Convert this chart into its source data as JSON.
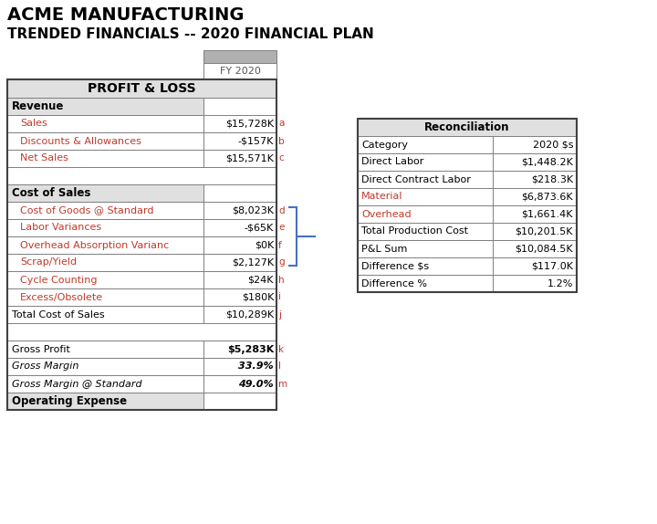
{
  "title1": "ACME MANUFACTURING",
  "title2": "TRENDED FINANCIALS -- 2020 FINANCIAL PLAN",
  "col_header": "FY 2020",
  "pl_section_title": "PROFIT & LOSS",
  "revenue_header": "Revenue",
  "revenue_rows": [
    {
      "label": "Sales",
      "value": "$15,728K",
      "tag": "a"
    },
    {
      "label": "Discounts & Allowances",
      "value": "-$157K",
      "tag": "b"
    },
    {
      "label": "Net Sales",
      "value": "$15,571K",
      "tag": "c"
    }
  ],
  "cos_header": "Cost of Sales",
  "cos_rows": [
    {
      "label": "Cost of Goods @ Standard",
      "value": "$8,023K",
      "tag": "d"
    },
    {
      "label": "Labor Variances",
      "value": "-$65K",
      "tag": "e"
    },
    {
      "label": "Overhead Absorption Varianc",
      "value": "$0K",
      "tag": "f"
    },
    {
      "label": "Scrap/Yield",
      "value": "$2,127K",
      "tag": "g"
    },
    {
      "label": "Cycle Counting",
      "value": "$24K",
      "tag": "h"
    },
    {
      "label": "Excess/Obsolete",
      "value": "$180K",
      "tag": "i"
    },
    {
      "label": "Total Cost of Sales",
      "value": "$10,289K",
      "tag": "j",
      "total": true
    }
  ],
  "gross_rows": [
    {
      "label": "Gross Profit",
      "value": "$5,283K",
      "tag": "k",
      "italic": false
    },
    {
      "label": "Gross Margin",
      "value": "33.9%",
      "tag": "l",
      "italic": true
    },
    {
      "label": "Gross Margin @ Standard",
      "value": "49.0%",
      "tag": "m",
      "italic": true
    }
  ],
  "opex_header": "Operating Expense",
  "recon_title": "Reconciliation",
  "recon_header": [
    "Category",
    "2020 $s"
  ],
  "recon_rows": [
    [
      "Direct Labor",
      "$1,448.2K"
    ],
    [
      "Direct Contract Labor",
      "$218.3K"
    ],
    [
      "Material",
      "$6,873.6K"
    ],
    [
      "Overhead",
      "$1,661.4K"
    ],
    [
      "Total Production Cost",
      "$10,201.5K"
    ],
    [
      "P&L Sum",
      "$10,084.5K"
    ],
    [
      "Difference $s",
      "$117.0K"
    ],
    [
      "Difference %",
      "1.2%"
    ]
  ],
  "recon_colored_rows": [
    2,
    3
  ],
  "c_gray_dark": "#b0b0b0",
  "c_gray_hdr": "#d4d4d4",
  "c_gray_section": "#e0e0e0",
  "c_white": "#ffffff",
  "c_black": "#000000",
  "c_red": "#c0392b",
  "c_blue": "#4472c4",
  "c_border": "#7f7f7f"
}
